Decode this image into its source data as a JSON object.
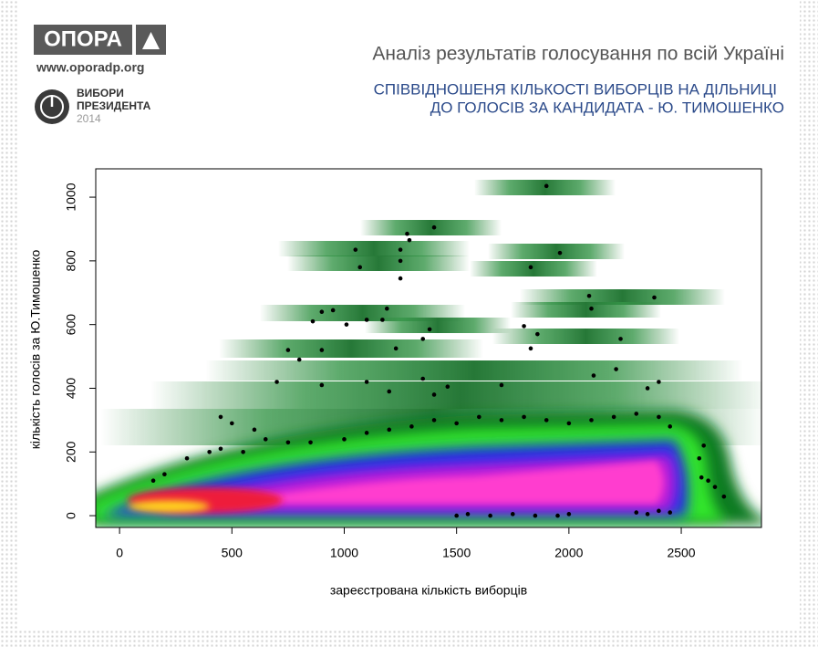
{
  "header": {
    "logo": "ОПОРА",
    "site": "www.oporadp.org",
    "badge": [
      "ВИБОРИ",
      "ПРЕЗИДЕНТА",
      "2014"
    ]
  },
  "chart_data": {
    "type": "scatter",
    "title": "Аналіз результатів голосування по всій Україні",
    "subtitle": [
      "СПІВВІДНОШЕНЯ КІЛЬКОСТІ ВИБОРЦІВ НА ДІЛЬНИЦІ",
      "ДО ГОЛОСІВ ЗА КАНДИДАТА - Ю. ТИМОШЕНКО"
    ],
    "x_label": "зареєстрована кількість виборців",
    "y_label": "кількість голосів за Ю.Тимошенко",
    "xlim": [
      -106,
      2857
    ],
    "ylim": [
      -37,
      1089
    ],
    "xticks": [
      0,
      500,
      1000,
      1500,
      2000,
      2500
    ],
    "yticks": [
      0,
      200,
      400,
      600,
      800,
      1000
    ],
    "color": "#000000",
    "x": [
      1900,
      1400,
      1280,
      1290,
      1050,
      1250,
      1960,
      1250,
      1070,
      1830,
      1250,
      2090,
      2380,
      2100,
      950,
      900,
      1190,
      1100,
      1170,
      860,
      1010,
      1380,
      1800,
      1860,
      1350,
      2230,
      1830,
      1230,
      750,
      900,
      800,
      2210,
      2110,
      1350,
      1100,
      700,
      900,
      1460,
      1700,
      2400,
      2350,
      1200,
      1400,
      450,
      500,
      600,
      650,
      750,
      850,
      1000,
      1100,
      1200,
      1300,
      1400,
      1500,
      1600,
      1700,
      1800,
      1900,
      2000,
      2100,
      2200,
      2300,
      2400,
      2450,
      400,
      300,
      200,
      150,
      450,
      550,
      2600,
      2580,
      2620,
      2650,
      2690,
      2590,
      1500,
      1550,
      1650,
      1750,
      1850,
      1950,
      2000,
      2300,
      2350,
      2450,
      2400
    ],
    "y": [
      1035,
      905,
      885,
      865,
      835,
      835,
      825,
      800,
      780,
      780,
      745,
      690,
      685,
      650,
      645,
      640,
      650,
      615,
      615,
      610,
      600,
      585,
      595,
      570,
      555,
      555,
      525,
      525,
      520,
      520,
      490,
      460,
      440,
      430,
      420,
      420,
      410,
      405,
      410,
      420,
      400,
      390,
      380,
      310,
      290,
      270,
      240,
      230,
      230,
      240,
      260,
      270,
      280,
      300,
      290,
      310,
      300,
      310,
      300,
      290,
      300,
      310,
      320,
      310,
      280,
      200,
      180,
      130,
      110,
      210,
      200,
      220,
      180,
      110,
      90,
      60,
      120,
      0,
      5,
      0,
      5,
      0,
      0,
      5,
      10,
      5,
      10,
      15
    ]
  }
}
